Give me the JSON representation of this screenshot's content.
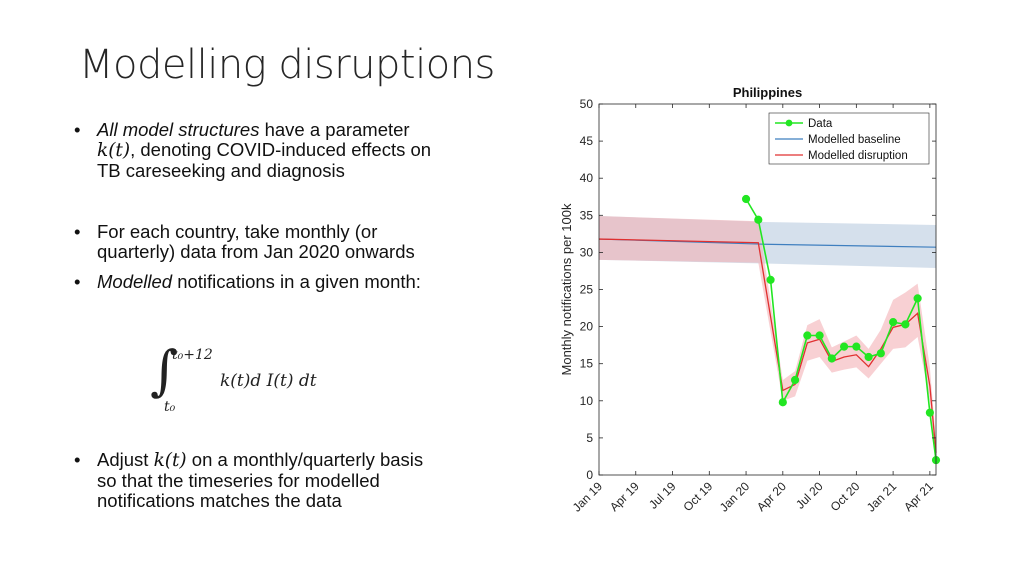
{
  "slide": {
    "title": "Modelling disruptions",
    "b1_italic": "All model structures",
    "b1_a": " have a parameter ",
    "b1_k": "k(t)",
    "b1_b": ", denoting COVID-induced effects on TB careseeking and diagnosis",
    "b2": "For each country, take monthly (or quarterly) data from Jan 2020 onwards",
    "b3_italic": "Modelled",
    "b3_rest": " notifications in a given month:",
    "int_upper": "t₀+12",
    "int_lower": "t₀",
    "int_body": "k(t)d I(t) dt",
    "b4_a": "Adjust ",
    "b4_k": "k(t)",
    "b4_b": " on a monthly/quarterly basis so that the timeseries for modelled notifications matches the data"
  },
  "chart_data": {
    "type": "line",
    "title": "Philippines",
    "ylabel": "Monthly notifications per 100k",
    "xlabel": "",
    "x_ticks": [
      "Jan 19",
      "Apr 19",
      "Jul 19",
      "Oct 19",
      "Jan 20",
      "Apr 20",
      "Jul 20",
      "Oct 20",
      "Jan 21",
      "Apr 21"
    ],
    "x_tick_positions": [
      0,
      3,
      6,
      9,
      12,
      15,
      18,
      21,
      24,
      27
    ],
    "xlim": [
      0,
      27.5
    ],
    "ylim": [
      0,
      50
    ],
    "y_ticks": [
      0,
      5,
      10,
      15,
      20,
      25,
      30,
      35,
      40,
      45,
      50
    ],
    "legend_position": "top-right",
    "colors": {
      "data": "#22e622",
      "baseline": "#3f7fbf",
      "disruption": "#e03030",
      "baseline_band": "#b3c7dd",
      "disruption_band": "#f3b1b6"
    },
    "series": [
      {
        "name": "Data",
        "x": [
          12,
          13,
          14,
          15,
          16,
          17,
          18,
          19,
          20,
          21,
          22,
          23,
          24,
          25,
          26,
          27,
          27.5
        ],
        "values": [
          37.2,
          34.4,
          26.3,
          9.8,
          12.8,
          18.8,
          18.8,
          15.7,
          17.3,
          17.3,
          15.9,
          16.4,
          20.6,
          20.3,
          23.8,
          8.4,
          2.0
        ]
      },
      {
        "name": "Modelled baseline",
        "x": [
          0,
          13.5,
          27.5
        ],
        "values": [
          31.8,
          31.1,
          30.7
        ],
        "band_lower": [
          29.0,
          28.5,
          27.9
        ],
        "band_upper": [
          34.9,
          34.1,
          33.7
        ]
      },
      {
        "name": "Modelled disruption",
        "x": [
          0,
          13,
          15,
          16,
          17,
          18,
          19,
          20,
          21,
          22,
          23,
          24,
          25,
          26,
          27,
          27.5
        ],
        "values": [
          31.8,
          31.3,
          11.4,
          12.2,
          17.8,
          18.3,
          15.3,
          15.9,
          16.2,
          14.6,
          17.0,
          19.9,
          20.3,
          21.8,
          12.0,
          3.0
        ],
        "band_lower": [
          29.0,
          28.6,
          10.0,
          10.6,
          15.4,
          15.9,
          13.8,
          14.2,
          14.5,
          13.0,
          15.0,
          17.0,
          17.2,
          18.6,
          10.0,
          1.5
        ],
        "band_upper": [
          34.9,
          34.2,
          12.8,
          14.0,
          20.2,
          21.0,
          17.2,
          18.0,
          18.8,
          17.0,
          19.6,
          23.6,
          24.6,
          25.8,
          14.5,
          4.5
        ]
      }
    ]
  }
}
